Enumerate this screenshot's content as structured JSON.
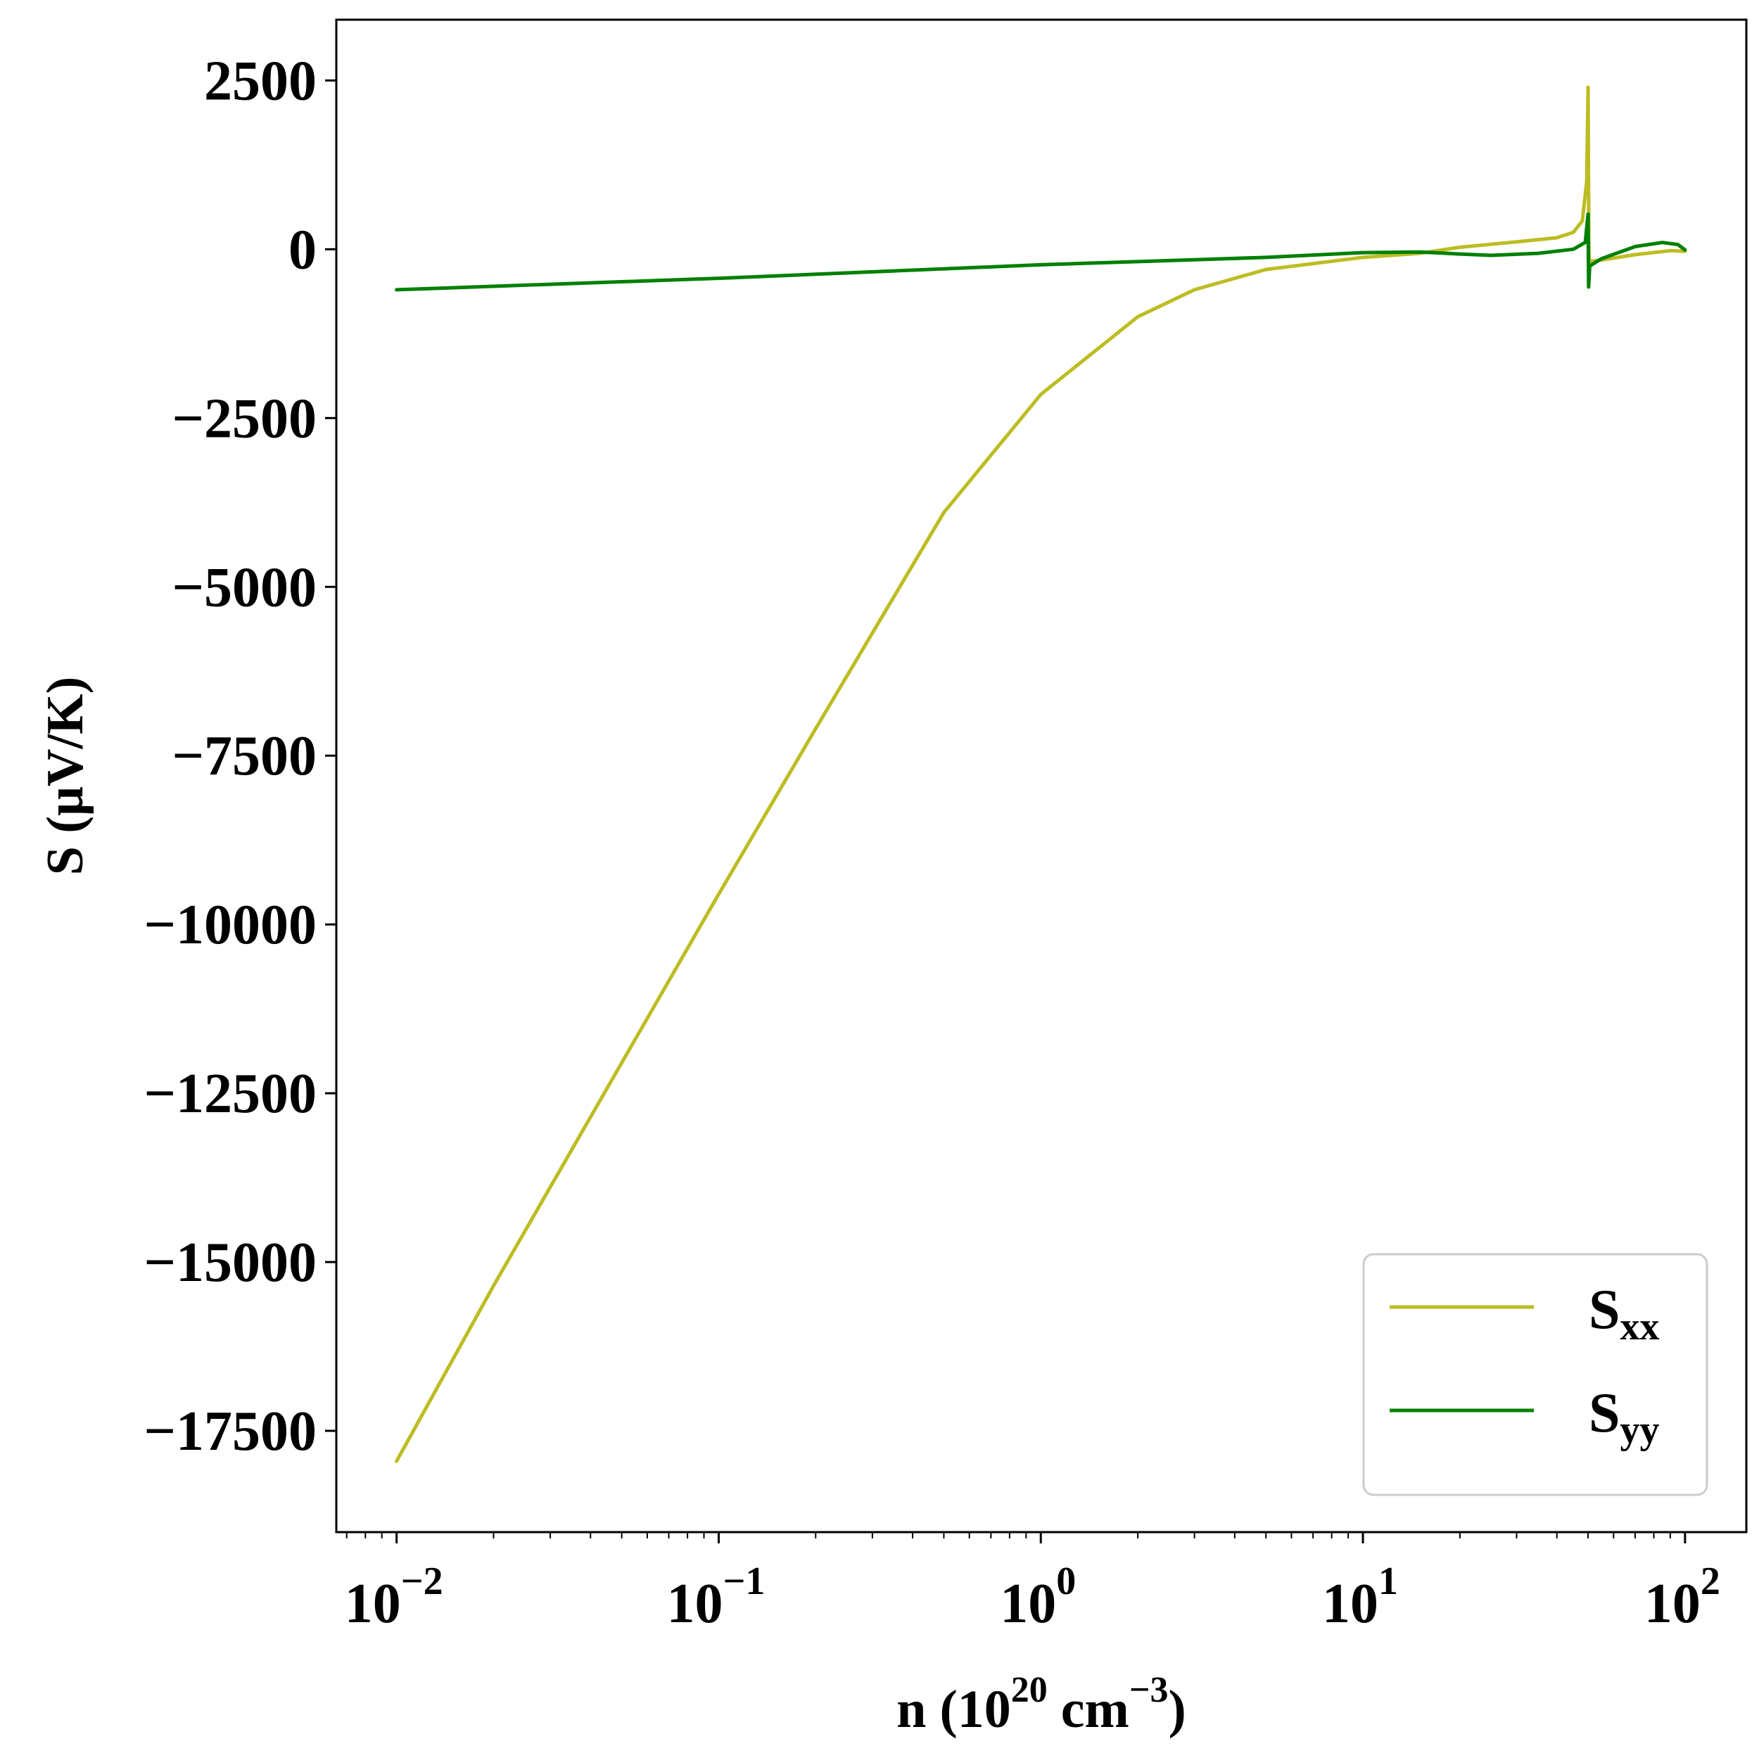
{
  "chart_data": {
    "type": "line",
    "xscale": "log",
    "xlim": [
      0.0065,
      155
    ],
    "ylim": [
      -19000,
      3400
    ],
    "x_ticks": [
      {
        "base": "10",
        "exp": "−2"
      },
      {
        "base": "10",
        "exp": "−1"
      },
      {
        "base": "10",
        "exp": "0"
      },
      {
        "base": "10",
        "exp": "1"
      },
      {
        "base": "10",
        "exp": "2"
      }
    ],
    "y_ticks": [
      {
        "value": 2500,
        "label": "2500"
      },
      {
        "value": 0,
        "label": "0"
      },
      {
        "value": -2500,
        "label": "−2500"
      },
      {
        "value": -5000,
        "label": "−5000"
      },
      {
        "value": -7500,
        "label": "−7500"
      },
      {
        "value": -10000,
        "label": "−10000"
      },
      {
        "value": -12500,
        "label": "−12500"
      },
      {
        "value": -15000,
        "label": "−15000"
      },
      {
        "value": -17500,
        "label": "−17500"
      }
    ],
    "xlabel": {
      "main": "n (10",
      "sup1": "20",
      "mid": " cm",
      "sup2": "−3",
      "end": ")"
    },
    "ylabel": "S (μV/K)",
    "grid": false,
    "legend_position": "lower-right",
    "series": [
      {
        "name": "S",
        "name_sub": "xx",
        "color": "#bcbd22",
        "points": [
          [
            0.01,
            -17950
          ],
          [
            0.02,
            -15350
          ],
          [
            0.05,
            -12050
          ],
          [
            0.1,
            -9550
          ],
          [
            0.2,
            -7100
          ],
          [
            0.5,
            -3900
          ],
          [
            1,
            -2150
          ],
          [
            2,
            -1000
          ],
          [
            3,
            -600
          ],
          [
            5,
            -300
          ],
          [
            10,
            -120
          ],
          [
            15,
            -60
          ],
          [
            20,
            30
          ],
          [
            30,
            110
          ],
          [
            40,
            170
          ],
          [
            45,
            250
          ],
          [
            48,
            420
          ],
          [
            49.5,
            1000
          ],
          [
            50,
            2400
          ],
          [
            50.3,
            0
          ],
          [
            50.5,
            -180
          ],
          [
            55,
            -160
          ],
          [
            70,
            -80
          ],
          [
            90,
            -20
          ],
          [
            100,
            -30
          ]
        ]
      },
      {
        "name": "S",
        "name_sub": "yy",
        "color": "#008000",
        "points": [
          [
            0.01,
            -600
          ],
          [
            0.1,
            -430
          ],
          [
            1,
            -230
          ],
          [
            5,
            -120
          ],
          [
            10,
            -50
          ],
          [
            15,
            -40
          ],
          [
            20,
            -70
          ],
          [
            25,
            -90
          ],
          [
            35,
            -60
          ],
          [
            45,
            0
          ],
          [
            49,
            100
          ],
          [
            50,
            520
          ],
          [
            50.2,
            -560
          ],
          [
            50.6,
            -250
          ],
          [
            55,
            -140
          ],
          [
            70,
            40
          ],
          [
            85,
            100
          ],
          [
            95,
            70
          ],
          [
            100,
            -10
          ]
        ]
      }
    ]
  }
}
